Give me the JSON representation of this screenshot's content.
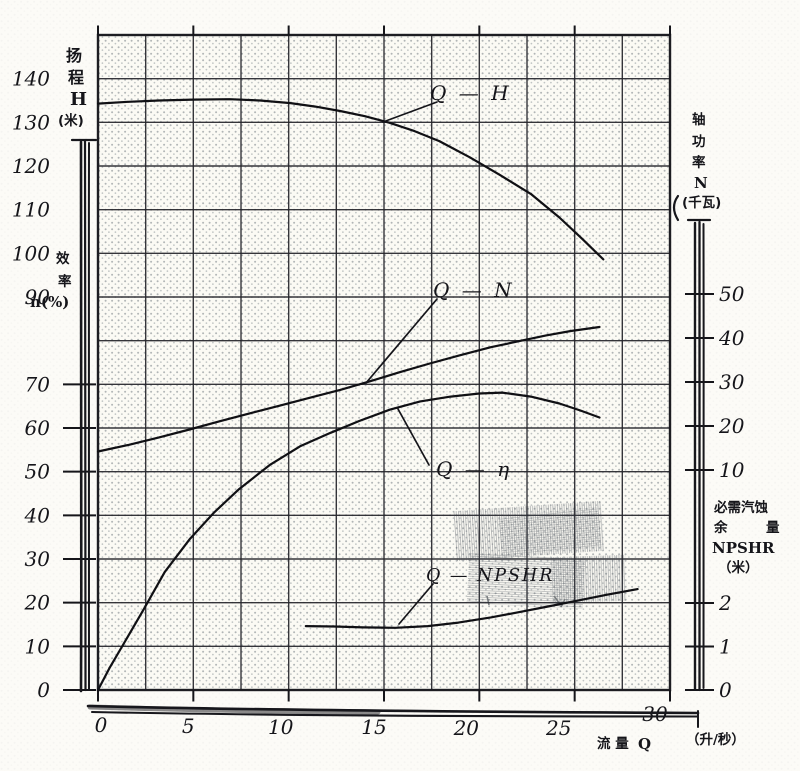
{
  "figure": {
    "left_axis": {
      "head_title_chars": [
        "扬",
        "程",
        "H",
        "(米)"
      ],
      "eff_title_chars": [
        "效",
        "率"
      ],
      "eff_unit": "n(%)"
    },
    "right_axis": {
      "power_title_chars": [
        "轴",
        "功",
        "率",
        "N",
        "(千瓦)"
      ],
      "npshr_title_line1": "必需汽蚀",
      "npshr_title_line2a": "余",
      "npshr_title_line2b": "量",
      "npshr_title_line3": "NPSHR",
      "npshr_title_line4": "（米）"
    },
    "x_axis": {
      "title": "流 量",
      "title_symbol": "Q",
      "unit": "（升/秒）"
    },
    "curve_labels": {
      "qh": "Q — H",
      "qn": "Q — N",
      "qeta": "Q — η",
      "qnpshr": "Q — NPSHR"
    }
  },
  "chart_data": {
    "type": "line",
    "x_axis": {
      "label": "流量Q",
      "unit": "升/秒",
      "range": [
        0,
        30
      ],
      "ticks": [
        0,
        5,
        10,
        15,
        20,
        25,
        30
      ]
    },
    "axes": {
      "H": {
        "label": "扬程 H (米)",
        "range": [
          0,
          150
        ],
        "ticks": [
          140,
          130,
          120,
          110,
          100,
          90,
          70,
          60,
          50,
          40,
          30,
          20,
          10,
          0
        ]
      },
      "eta": {
        "label": "效率 n(%)",
        "range": [
          0,
          150
        ]
      },
      "N": {
        "label": "轴功率 N (千瓦)",
        "ticks": [
          50,
          40,
          30,
          20,
          10
        ]
      },
      "npshr": {
        "label": "必需汽蚀余量 NPSHR (米)",
        "ticks": [
          2,
          1,
          0
        ]
      }
    },
    "grid": true,
    "legend": "inline curve labels with leader lines",
    "series": [
      {
        "name": "Q-H",
        "axis": "H",
        "points": [
          [
            0,
            134.3
          ],
          [
            1.6,
            134.7
          ],
          [
            3.2,
            135.0
          ],
          [
            5.0,
            135.2
          ],
          [
            6.9,
            135.3
          ],
          [
            8.5,
            135.0
          ],
          [
            10.1,
            134.4
          ],
          [
            11.4,
            133.6
          ],
          [
            12.7,
            132.6
          ],
          [
            14.0,
            131.4
          ],
          [
            15.3,
            129.9
          ],
          [
            16.6,
            128.0
          ],
          [
            17.9,
            125.7
          ],
          [
            19.5,
            122.0
          ],
          [
            21.1,
            117.9
          ],
          [
            22.7,
            113.6
          ],
          [
            24.2,
            108.2
          ],
          [
            25.4,
            103.3
          ],
          [
            26.5,
            98.6
          ]
        ]
      },
      {
        "name": "Q-N",
        "axis": "N",
        "points": [
          [
            0,
            14.2
          ],
          [
            1.6,
            15.7
          ],
          [
            3.2,
            17.4
          ],
          [
            4.8,
            19.2
          ],
          [
            6.4,
            21.1
          ],
          [
            8.0,
            22.9
          ],
          [
            9.5,
            24.6
          ],
          [
            11.1,
            26.4
          ],
          [
            12.7,
            28.2
          ],
          [
            14.3,
            30.2
          ],
          [
            15.8,
            32.2
          ],
          [
            17.4,
            34.2
          ],
          [
            19.0,
            36.1
          ],
          [
            20.6,
            37.9
          ],
          [
            22.1,
            39.3
          ],
          [
            23.5,
            40.6
          ],
          [
            24.8,
            41.6
          ],
          [
            26.3,
            42.5
          ]
        ]
      },
      {
        "name": "Q-η",
        "axis": "eta",
        "points": [
          [
            0,
            0
          ],
          [
            0.6,
            5
          ],
          [
            1.4,
            11
          ],
          [
            2.4,
            18.5
          ],
          [
            3.5,
            27
          ],
          [
            4.8,
            34.5
          ],
          [
            6.1,
            40.7
          ],
          [
            7.4,
            46
          ],
          [
            9.0,
            51.5
          ],
          [
            10.6,
            55.8
          ],
          [
            12.2,
            58.9
          ],
          [
            13.7,
            61.6
          ],
          [
            15.3,
            64.2
          ],
          [
            16.9,
            66.1
          ],
          [
            18.5,
            67.2
          ],
          [
            20.0,
            67.9
          ],
          [
            21.2,
            68.1
          ],
          [
            22.7,
            67.2
          ],
          [
            24.2,
            65.6
          ],
          [
            25.3,
            64.0
          ],
          [
            26.3,
            62.4
          ]
        ]
      },
      {
        "name": "Q-NPSHR",
        "axis": "npshr",
        "points": [
          [
            10.9,
            1.47
          ],
          [
            12.4,
            1.46
          ],
          [
            13.9,
            1.44
          ],
          [
            15.6,
            1.43
          ],
          [
            17.3,
            1.47
          ],
          [
            18.9,
            1.55
          ],
          [
            20.6,
            1.67
          ],
          [
            22.1,
            1.79
          ],
          [
            23.6,
            1.92
          ],
          [
            25.1,
            2.05
          ],
          [
            26.7,
            2.19
          ],
          [
            28.3,
            2.32
          ]
        ]
      }
    ]
  }
}
